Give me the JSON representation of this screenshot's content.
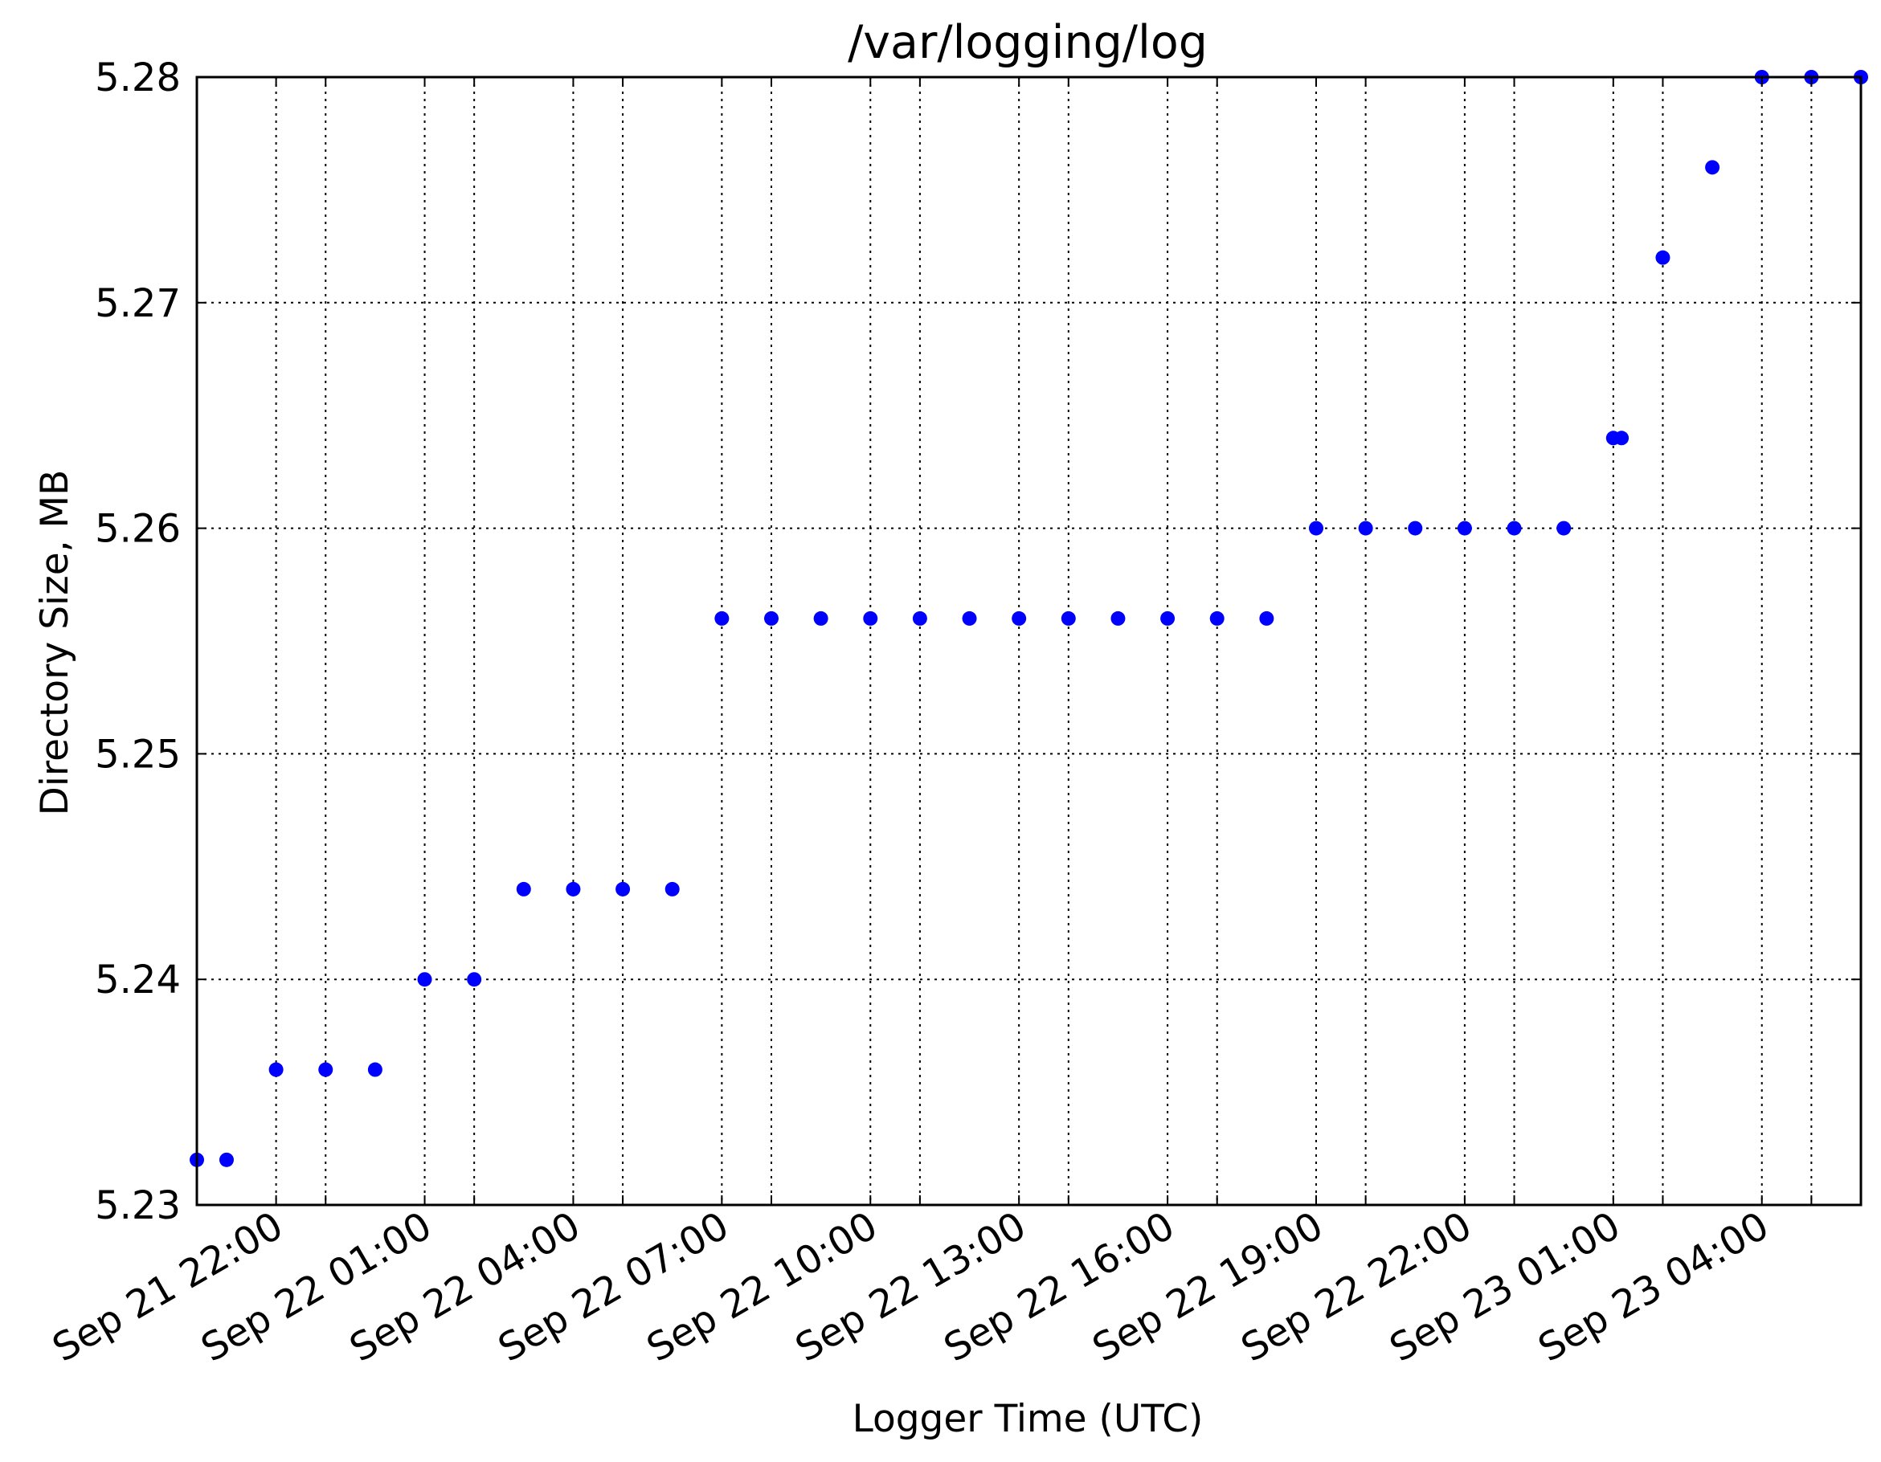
{
  "chart_data": {
    "type": "scatter",
    "title": "/var/logging/log",
    "xlabel": "Logger Time (UTC)",
    "ylabel": "Directory Size, MB",
    "ylim": [
      5.23,
      5.28
    ],
    "xlim": [
      "Sep 21 20:24",
      "Sep 23 06:00"
    ],
    "yticks": [
      "5.23",
      "5.24",
      "5.25",
      "5.26",
      "5.27",
      "5.28"
    ],
    "xticks": [
      {
        "time": "Sep 21 22:00",
        "label": "Sep 21 22:00"
      },
      {
        "time": "Sep 22 01:00",
        "label": "Sep 22 01:00"
      },
      {
        "time": "Sep 22 04:00",
        "label": "Sep 22 04:00"
      },
      {
        "time": "Sep 22 07:00",
        "label": "Sep 22 07:00"
      },
      {
        "time": "Sep 22 10:00",
        "label": "Sep 22 10:00"
      },
      {
        "time": "Sep 22 13:00",
        "label": "Sep 22 13:00"
      },
      {
        "time": "Sep 22 16:00",
        "label": "Sep 22 16:00"
      },
      {
        "time": "Sep 22 19:00",
        "label": "Sep 22 19:00"
      },
      {
        "time": "Sep 22 22:00",
        "label": "Sep 22 22:00"
      },
      {
        "time": "Sep 23 01:00",
        "label": "Sep 23 01:00"
      },
      {
        "time": "Sep 23 04:00",
        "label": "Sep 23 04:00"
      }
    ],
    "minor_xgrid": [
      "Sep 21 23:00",
      "Sep 22 02:00",
      "Sep 22 05:00",
      "Sep 22 08:00",
      "Sep 22 11:00",
      "Sep 22 14:00",
      "Sep 22 17:00",
      "Sep 22 20:00",
      "Sep 22 23:00",
      "Sep 23 02:00",
      "Sep 23 05:00"
    ],
    "grid": true,
    "marker_color": "#0000ff",
    "series": [
      {
        "points": [
          {
            "x": "Sep 21 20:24",
            "y": 5.232
          },
          {
            "x": "Sep 21 21:00",
            "y": 5.232
          },
          {
            "x": "Sep 21 22:00",
            "y": 5.236
          },
          {
            "x": "Sep 21 23:00",
            "y": 5.236
          },
          {
            "x": "Sep 22 00:00",
            "y": 5.236
          },
          {
            "x": "Sep 22 01:00",
            "y": 5.24
          },
          {
            "x": "Sep 22 02:00",
            "y": 5.24
          },
          {
            "x": "Sep 22 03:00",
            "y": 5.244
          },
          {
            "x": "Sep 22 04:00",
            "y": 5.244
          },
          {
            "x": "Sep 22 05:00",
            "y": 5.244
          },
          {
            "x": "Sep 22 06:00",
            "y": 5.244
          },
          {
            "x": "Sep 22 07:00",
            "y": 5.256
          },
          {
            "x": "Sep 22 08:00",
            "y": 5.256
          },
          {
            "x": "Sep 22 09:00",
            "y": 5.256
          },
          {
            "x": "Sep 22 10:00",
            "y": 5.256
          },
          {
            "x": "Sep 22 11:00",
            "y": 5.256
          },
          {
            "x": "Sep 22 12:00",
            "y": 5.256
          },
          {
            "x": "Sep 22 13:00",
            "y": 5.256
          },
          {
            "x": "Sep 22 14:00",
            "y": 5.256
          },
          {
            "x": "Sep 22 15:00",
            "y": 5.256
          },
          {
            "x": "Sep 22 16:00",
            "y": 5.256
          },
          {
            "x": "Sep 22 17:00",
            "y": 5.256
          },
          {
            "x": "Sep 22 18:00",
            "y": 5.256
          },
          {
            "x": "Sep 22 19:00",
            "y": 5.26
          },
          {
            "x": "Sep 22 20:00",
            "y": 5.26
          },
          {
            "x": "Sep 22 21:00",
            "y": 5.26
          },
          {
            "x": "Sep 22 22:00",
            "y": 5.26
          },
          {
            "x": "Sep 22 23:00",
            "y": 5.26
          },
          {
            "x": "Sep 23 00:00",
            "y": 5.26
          },
          {
            "x": "Sep 23 01:00",
            "y": 5.264
          },
          {
            "x": "Sep 23 01:10",
            "y": 5.264
          },
          {
            "x": "Sep 23 02:00",
            "y": 5.272
          },
          {
            "x": "Sep 23 03:00",
            "y": 5.276
          },
          {
            "x": "Sep 23 04:00",
            "y": 5.28
          },
          {
            "x": "Sep 23 05:00",
            "y": 5.28
          },
          {
            "x": "Sep 23 06:00",
            "y": 5.28
          }
        ]
      }
    ]
  }
}
